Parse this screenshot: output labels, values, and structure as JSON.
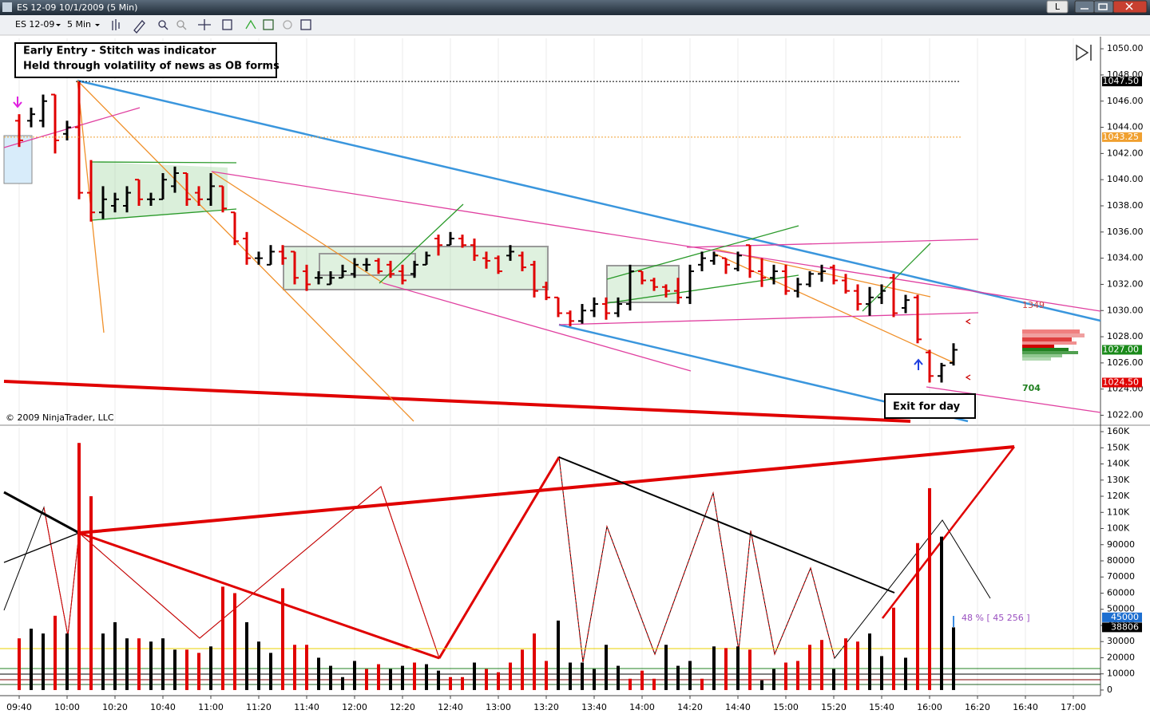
{
  "window": {
    "title": "ES 12-09  10/1/2009 (5 Min)",
    "button": "L"
  },
  "toolbar": {
    "instrument": "ES 12-09",
    "interval": "5 Min"
  },
  "annotations": {
    "entry_lines": [
      "Early Entry - Stitch was indicator",
      "Held through volatility of news as OB forms"
    ],
    "exit": "Exit for day",
    "copyright": "© 2009 NinjaTrader, LLC",
    "depth_ask": 1349,
    "depth_bid": 704,
    "volume_ratio": "48 % [ 45 256 ]"
  },
  "chart_data": [
    {
      "type": "ohlc",
      "up_color": "#000000",
      "down_color": "#e00000",
      "open": [
        1044.5,
        1044.5,
        1044.5,
        1046.5,
        1043.5,
        1044,
        1039,
        1037.5,
        1038,
        1038,
        1040,
        1038.5,
        1038.5,
        1039.5,
        1040.5,
        1039,
        1038.5,
        1039.5,
        1037.5,
        1035.5,
        1034,
        1033.5,
        1034.5,
        1034.5,
        1033,
        1032.5,
        1032,
        1032.5,
        1032.8,
        1033.5,
        1033.8,
        1033.5,
        1033,
        1032.8,
        1033.5,
        1035.5,
        1035,
        1035.5,
        1035,
        1034,
        1034,
        1034.2,
        1034.2,
        1033.5,
        1031.8,
        1031,
        1029.8,
        1029.2,
        1030,
        1030.5,
        1029.8,
        1030.5,
        1033,
        1032.3,
        1031.8,
        1031.5,
        1031,
        1033.5,
        1033.8,
        1034,
        1033.2,
        1035,
        1033,
        1032.5,
        1033,
        1031.5,
        1032,
        1032.8,
        1033.3,
        1032.3,
        1031.5,
        1030.5,
        1031,
        1032.5,
        1030.2,
        1031,
        1026.8,
        1025,
        1026,
        null,
        null,
        null,
        null,
        null,
        null,
        null,
        null,
        null,
        null
      ],
      "high": [
        1045,
        1045.5,
        1046.5,
        1046.5,
        1044.5,
        1047.5,
        1041.5,
        1039.5,
        1039,
        1039.5,
        1040,
        1039,
        1040.5,
        1041,
        1040.5,
        1039.5,
        1040.5,
        1039.5,
        1037.5,
        1036,
        1034.5,
        1035,
        1035,
        1034.5,
        1033.5,
        1033,
        1033,
        1033.5,
        1034,
        1034,
        1034,
        1033.8,
        1033.5,
        1033.8,
        1034.5,
        1035.8,
        1036,
        1035.8,
        1035.5,
        1034.5,
        1034.2,
        1035,
        1034.5,
        1033.8,
        1032.2,
        1031,
        1030,
        1030.5,
        1031,
        1031,
        1031,
        1033.5,
        1033,
        1032.5,
        1032,
        1032.5,
        1033.5,
        1034.5,
        1034.5,
        1034,
        1034.5,
        1035,
        1034,
        1033.5,
        1033.5,
        1032.5,
        1033,
        1033.5,
        1033.5,
        1032.8,
        1032,
        1031.8,
        1032,
        1032.8,
        1031.2,
        1031.2,
        1027,
        1026,
        1027.5,
        null,
        null,
        null,
        null,
        null,
        null,
        null,
        null,
        null,
        null
      ],
      "low": [
        1042.5,
        1044,
        1044,
        1042,
        1043,
        1038.5,
        1036.8,
        1037,
        1037.5,
        1037.5,
        1038,
        1038,
        1038.5,
        1039,
        1038,
        1038,
        1038,
        1037.5,
        1035,
        1033.5,
        1033.5,
        1033.5,
        1033.5,
        1032,
        1031.5,
        1032,
        1032,
        1032.5,
        1032.5,
        1033,
        1032.8,
        1032.5,
        1032,
        1032.5,
        1033.5,
        1034.2,
        1035,
        1034.8,
        1033.8,
        1033.2,
        1032.8,
        1033.8,
        1033,
        1031,
        1030.8,
        1029.5,
        1028.8,
        1029,
        1029.5,
        1029.3,
        1029.5,
        1030,
        1032,
        1031.5,
        1031,
        1030.5,
        1030.5,
        1033,
        1033.5,
        1032.8,
        1033,
        1032.5,
        1031.8,
        1032,
        1031.2,
        1031,
        1031.8,
        1032.2,
        1032,
        1031.3,
        1030,
        1029.6,
        1030.5,
        1029.5,
        1029.8,
        1027.5,
        1024.5,
        1024.5,
        1025.8,
        null,
        null,
        null,
        null,
        null,
        null,
        null,
        null,
        null,
        null
      ],
      "close": [
        1043,
        1045,
        1046,
        1043,
        1044,
        1039,
        1037.5,
        1038.5,
        1038.5,
        1039,
        1038.5,
        1038.5,
        1040,
        1040.5,
        1038.5,
        1038.5,
        1039.5,
        1037.8,
        1035.3,
        1034,
        1034,
        1034.5,
        1034,
        1032.5,
        1032,
        1032.5,
        1032.5,
        1033,
        1033.5,
        1033.5,
        1033,
        1032.8,
        1032.3,
        1033.5,
        1034.2,
        1035,
        1035.5,
        1035,
        1034.2,
        1033.8,
        1033,
        1034.5,
        1033.3,
        1031.5,
        1031,
        1029.8,
        1029.2,
        1030,
        1030.5,
        1029.8,
        1030.5,
        1033,
        1032.3,
        1031.8,
        1031.5,
        1031,
        1033,
        1034,
        1034.2,
        1033.5,
        1034.2,
        1033,
        1032.5,
        1033,
        1031.5,
        1032,
        1032.8,
        1033,
        1032.3,
        1031.5,
        1030.5,
        1031,
        1031.5,
        1029.8,
        1030.8,
        1027.8,
        1025,
        1025.8,
        1027,
        null,
        null,
        null,
        null,
        null,
        null,
        null,
        null,
        null,
        null
      ],
      "ylim": [
        1021.3,
        1050.8
      ],
      "yticks": [
        {
          "value": 1022,
          "label": "1022.00"
        },
        {
          "value": 1024,
          "label": "1024.00"
        },
        {
          "value": 1026,
          "label": "1026.00"
        },
        {
          "value": 1028,
          "label": "1028.00"
        },
        {
          "value": 1030,
          "label": "1030.00"
        },
        {
          "value": 1032,
          "label": "1032.00"
        },
        {
          "value": 1034,
          "label": "1034.00"
        },
        {
          "value": 1036,
          "label": "1036.00"
        },
        {
          "value": 1038,
          "label": "1038.00"
        },
        {
          "value": 1040,
          "label": "1040.00"
        },
        {
          "value": 1042,
          "label": "1042.00"
        },
        {
          "value": 1044,
          "label": "1044.00"
        },
        {
          "value": 1046,
          "label": "1046.00"
        },
        {
          "value": 1048,
          "label": "1048.00"
        },
        {
          "value": 1050,
          "label": "1050.00"
        }
      ],
      "markers": [
        {
          "value": 1047.5,
          "label": "1047.50",
          "color": "#000000",
          "dotted": true
        },
        {
          "value": 1043.25,
          "label": "1043.25",
          "color": "#f0a030",
          "dotted": true
        },
        {
          "value": 1027,
          "label": "1027.00",
          "color": "#1a8a1a"
        },
        {
          "value": 1024.5,
          "label": "1024.50",
          "color": "#e00000"
        }
      ]
    },
    {
      "type": "bar",
      "categories": [
        "09:40",
        null,
        null,
        null,
        "10:00",
        null,
        null,
        null,
        "10:20",
        null,
        null,
        null,
        "10:40",
        null,
        null,
        null,
        "11:00",
        null,
        null,
        null,
        "11:20",
        null,
        null,
        null,
        "11:40",
        null,
        null,
        null,
        "12:00",
        null,
        null,
        null,
        "12:20",
        null,
        null,
        null,
        "12:40",
        null,
        null,
        null,
        "13:00",
        null,
        null,
        null,
        "13:20",
        null,
        null,
        null,
        "13:40",
        null,
        null,
        null,
        "14:00",
        null,
        null,
        null,
        "14:20",
        null,
        null,
        null,
        "14:40",
        null,
        null,
        null,
        "15:00",
        null,
        null,
        null,
        "15:20",
        null,
        null,
        null,
        "15:40",
        null,
        null,
        null,
        "16:00",
        null,
        null,
        null,
        "16:20",
        null,
        null,
        null,
        "16:40",
        null,
        null,
        null,
        "17:00"
      ],
      "values": [
        32000,
        38000,
        35000,
        46000,
        35000,
        153000,
        120000,
        35000,
        42000,
        32000,
        32000,
        30000,
        32000,
        25000,
        25000,
        23000,
        27000,
        64000,
        60000,
        42000,
        30000,
        23000,
        63000,
        28000,
        28000,
        20000,
        15000,
        8000,
        18000,
        13000,
        16000,
        13000,
        15000,
        17000,
        16000,
        12000,
        8000,
        8000,
        17000,
        13000,
        11000,
        17000,
        25000,
        35000,
        18000,
        43000,
        17000,
        17000,
        13000,
        28000,
        15000,
        7000,
        12000,
        7000,
        28000,
        15000,
        18000,
        7000,
        27000,
        26000,
        27000,
        25000,
        6000,
        13000,
        17000,
        18000,
        28000,
        31000,
        13000,
        32000,
        30000,
        35000,
        21000,
        51000,
        20000,
        91000,
        125000,
        95000,
        38806,
        null,
        null,
        null,
        null,
        null,
        null,
        null,
        null,
        null,
        null
      ],
      "colors": [
        "#e00000",
        "#000000",
        "#000000",
        "#e00000",
        "#000000",
        "#e00000",
        "#e00000",
        "#000000",
        "#000000",
        "#000000",
        "#e00000",
        "#000000",
        "#000000",
        "#000000",
        "#e00000",
        "#e00000",
        "#000000",
        "#e00000",
        "#e00000",
        "#000000",
        "#000000",
        "#000000",
        "#e00000",
        "#e00000",
        "#e00000",
        "#000000",
        "#000000",
        "#000000",
        "#000000",
        "#e00000",
        "#e00000",
        "#000000",
        "#000000",
        "#e00000",
        "#000000",
        "#000000",
        "#e00000",
        "#e00000",
        "#000000",
        "#e00000",
        "#e00000",
        "#e00000",
        "#e00000",
        "#e00000",
        "#e00000",
        "#000000",
        "#000000",
        "#000000",
        "#000000",
        "#000000",
        "#000000",
        "#e00000",
        "#e00000",
        "#e00000",
        "#000000",
        "#000000",
        "#000000",
        "#e00000",
        "#000000",
        "#e00000",
        "#000000",
        "#e00000",
        "#000000",
        "#000000",
        "#e00000",
        "#e00000",
        "#e00000",
        "#e00000",
        "#000000",
        "#e00000",
        "#e00000",
        "#000000",
        "#000000",
        "#e00000",
        "#000000",
        "#e00000",
        "#e00000",
        "#000000",
        "#000000",
        null,
        null,
        null,
        null,
        null,
        null,
        null,
        null,
        null,
        null
      ],
      "ylim": [
        -2500,
        162500
      ],
      "yticks": [
        0,
        10000,
        20000,
        30000,
        40000,
        50000,
        60000,
        70000,
        80000,
        90000,
        {
          "value": 100000,
          "label": "100K"
        },
        {
          "value": 110000,
          "label": "110K"
        },
        {
          "value": 120000,
          "label": "120K"
        },
        {
          "value": 130000,
          "label": "130K"
        },
        {
          "value": 140000,
          "label": "140K"
        },
        {
          "value": 150000,
          "label": "150K"
        },
        {
          "value": 160000,
          "label": "160K"
        }
      ],
      "markers": [
        {
          "value": 45000,
          "color": "#1e6fd0"
        },
        {
          "value": 38806,
          "color": "#000000"
        }
      ]
    }
  ]
}
